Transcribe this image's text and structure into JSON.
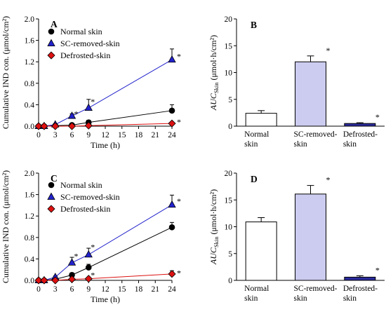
{
  "colors": {
    "normal": "#000000",
    "sc_removed": "#2222cc",
    "defrosted": "#dd1111",
    "bar_normal": "#ffffff",
    "bar_sc": "#ccccf0",
    "bar_defrosted": "#2a2a9a"
  },
  "chart_data": [
    {
      "type": "line",
      "panel": "A",
      "xlabel": "Time (h)",
      "ylabel": "Cumulative IND con. (μmol/cm²)",
      "x": [
        0,
        1,
        3,
        6,
        9,
        24
      ],
      "xticks": [
        "0",
        "3",
        "6",
        "9",
        "12",
        "15",
        "18",
        "21",
        "24"
      ],
      "yticks": [
        "0.0",
        "0.4",
        "0.8",
        "1.2",
        "1.6",
        "2.0"
      ],
      "xlim": [
        0,
        24
      ],
      "ylim": [
        0,
        2.0
      ],
      "series": [
        {
          "name": "Normal skin",
          "marker": "circle",
          "values": [
            0,
            0,
            0.01,
            0.02,
            0.07,
            0.29
          ],
          "err": [
            0,
            0,
            0.01,
            0.01,
            0.04,
            0.11
          ]
        },
        {
          "name": "SC-removed-skin",
          "marker": "triangle",
          "values": [
            0,
            0,
            0.03,
            0.19,
            0.34,
            1.24
          ],
          "err": [
            0,
            0,
            0.01,
            0.04,
            0.16,
            0.2
          ]
        },
        {
          "name": "Defrosted-skin",
          "marker": "diamond",
          "values": [
            0,
            0,
            0,
            0,
            0.01,
            0.05
          ],
          "err": [
            0,
            0,
            0,
            0,
            0.01,
            0.03
          ]
        }
      ],
      "annotations": [
        {
          "text": "*",
          "x": 6,
          "y": 0.23
        },
        {
          "text": "*",
          "x": 9,
          "y": 0.46
        },
        {
          "text": "*",
          "x": 24,
          "y": 1.3
        },
        {
          "text": "*",
          "x": 24,
          "y": 0.08
        }
      ]
    },
    {
      "type": "bar",
      "panel": "B",
      "ylabel": "AUC",
      "ylabel_sub": "Skin",
      "ylabel_unit": " (μmol·h/cm²)",
      "categories": [
        "Normal skin",
        "SC-removed-skin",
        "Defrosted-skin"
      ],
      "category_lines": [
        [
          "Normal",
          "skin"
        ],
        [
          "SC-removed-",
          "skin"
        ],
        [
          "Defrosted-",
          "skin"
        ]
      ],
      "values": [
        2.4,
        12.0,
        0.5
      ],
      "err": [
        0.5,
        1.1,
        0.15
      ],
      "yticks": [
        "0",
        "5",
        "10",
        "15",
        "20"
      ],
      "ylim": [
        0,
        20
      ],
      "annotations": [
        {
          "text": "*",
          "category": 1
        },
        {
          "text": "*",
          "category": 2
        }
      ]
    },
    {
      "type": "line",
      "panel": "C",
      "xlabel": "Time (h)",
      "ylabel": "Cumulative IND con. (μmol/cm²)",
      "x": [
        0,
        1,
        3,
        6,
        9,
        24
      ],
      "xticks": [
        "0",
        "3",
        "6",
        "9",
        "12",
        "15",
        "18",
        "21",
        "24"
      ],
      "yticks": [
        "0.0",
        "0.4",
        "0.8",
        "1.2",
        "1.6",
        "2.0"
      ],
      "xlim": [
        0,
        24
      ],
      "ylim": [
        0,
        2.0
      ],
      "series": [
        {
          "name": "Normal skin",
          "marker": "circle",
          "values": [
            0,
            0,
            0.02,
            0.1,
            0.24,
            0.99
          ],
          "err": [
            0,
            0,
            0.01,
            0.04,
            0.06,
            0.09
          ]
        },
        {
          "name": "SC-removed-skin",
          "marker": "triangle",
          "values": [
            0,
            0,
            0.06,
            0.33,
            0.48,
            1.41
          ],
          "err": [
            0,
            0,
            0.02,
            0.1,
            0.12,
            0.18
          ]
        },
        {
          "name": "Defrosted-skin",
          "marker": "diamond",
          "values": [
            0,
            0,
            0,
            0.02,
            0.03,
            0.12
          ],
          "err": [
            0,
            0,
            0,
            0.01,
            0.01,
            0.06
          ]
        }
      ],
      "annotations": [
        {
          "text": "*",
          "x": 6,
          "y": 0.45
        },
        {
          "text": "*",
          "x": 9,
          "y": 0.62
        },
        {
          "text": "*",
          "x": 9,
          "y": 0.1
        },
        {
          "text": "*",
          "x": 24,
          "y": 1.48
        },
        {
          "text": "*",
          "x": 24,
          "y": 0.14
        }
      ]
    },
    {
      "type": "bar",
      "panel": "D",
      "ylabel": "AUC",
      "ylabel_sub": "Skin",
      "ylabel_unit": " (μmol·h/cm²)",
      "categories": [
        "Normal skin",
        "SC-removed-skin",
        "Defrosted-skin"
      ],
      "category_lines": [
        [
          "Normal",
          "skin"
        ],
        [
          "SC-removed-",
          "skin"
        ],
        [
          "Defrosted-",
          "skin"
        ]
      ],
      "values": [
        10.9,
        16.1,
        0.6
      ],
      "err": [
        0.8,
        1.6,
        0.25
      ],
      "yticks": [
        "0",
        "5",
        "10",
        "15",
        "20"
      ],
      "ylim": [
        0,
        20
      ],
      "annotations": [
        {
          "text": "*",
          "category": 1
        },
        {
          "text": "*",
          "category": 2
        }
      ]
    }
  ]
}
